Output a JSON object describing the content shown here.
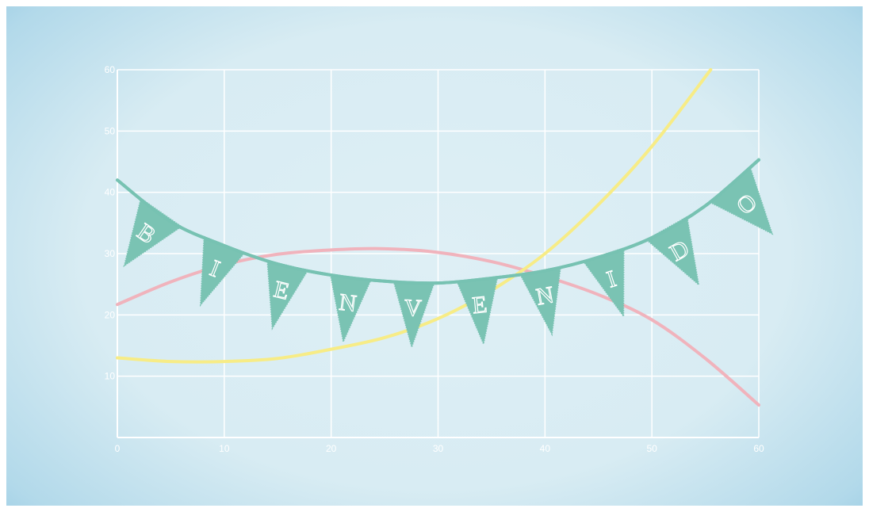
{
  "chart_data": {
    "type": "line",
    "title": "",
    "xlabel": "",
    "ylabel": "",
    "xlim": [
      0,
      60
    ],
    "ylim": [
      0,
      60
    ],
    "x_ticks": [
      0,
      10,
      20,
      30,
      40,
      50,
      60
    ],
    "y_ticks": [
      10,
      20,
      30,
      40,
      50,
      60
    ],
    "grid": true,
    "legend": "none",
    "series": [
      {
        "color": "#f0b3bc",
        "x": [
          0,
          5,
          10,
          15,
          20,
          25,
          30,
          35,
          40,
          45,
          50,
          55,
          60
        ],
        "y": [
          21.7,
          25.4,
          28.2,
          29.9,
          30.6,
          30.8,
          30.2,
          28.7,
          26.3,
          23.3,
          19.2,
          12.9,
          5.3
        ]
      },
      {
        "color": "#f7ec86",
        "x": [
          0,
          5,
          10,
          15,
          20,
          25,
          30,
          35,
          40,
          45,
          50,
          55.5
        ],
        "y": [
          13.0,
          12.4,
          12.4,
          12.9,
          14.4,
          16.3,
          19.4,
          24.0,
          30.0,
          38.0,
          47.5,
          60.0
        ]
      },
      {
        "color": "#77c2b2",
        "x": [
          0,
          5,
          10,
          15,
          20,
          25,
          30,
          35,
          40,
          45,
          50,
          55,
          60
        ],
        "y": [
          42.0,
          35.2,
          31.3,
          28.3,
          26.5,
          25.5,
          25.2,
          26.0,
          27.2,
          29.4,
          32.6,
          37.8,
          45.3
        ]
      }
    ]
  },
  "banner": {
    "letters": [
      "B",
      "I",
      "E",
      "N",
      "V",
      "E",
      "N",
      "I",
      "D",
      "O"
    ],
    "flag_color": "#7ac3b3",
    "string_color": "#77c2b2",
    "letter_color": "#ffffff"
  },
  "colors": {
    "background": "#dcedf4",
    "grid": "#ffffff",
    "axis": "#ffffff"
  }
}
